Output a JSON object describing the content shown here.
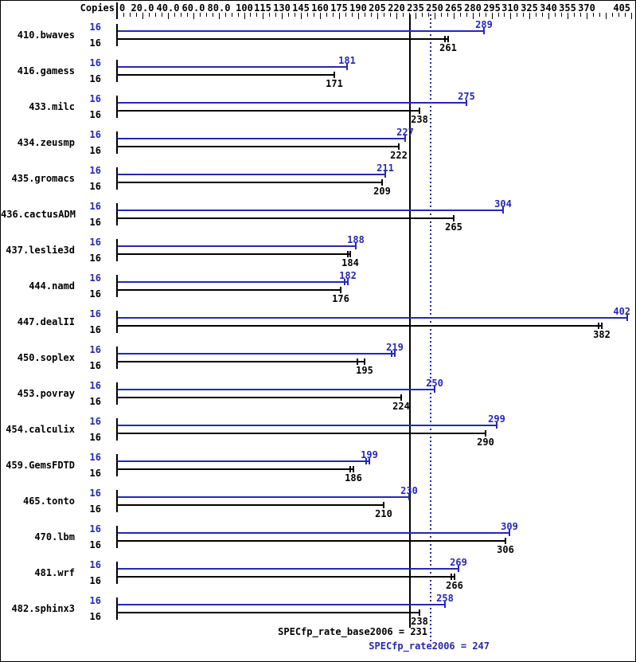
{
  "header": {
    "copies_label": "Copies"
  },
  "axis": {
    "min": 0,
    "max": 405,
    "minor_step": 5,
    "labels": [
      {
        "v": 0,
        "t": "0"
      },
      {
        "v": 20,
        "t": "20.0"
      },
      {
        "v": 40,
        "t": "40.0"
      },
      {
        "v": 60,
        "t": "60.0"
      },
      {
        "v": 80,
        "t": "80.0"
      },
      {
        "v": 100,
        "t": "100"
      },
      {
        "v": 115,
        "t": "115"
      },
      {
        "v": 130,
        "t": "130"
      },
      {
        "v": 145,
        "t": "145"
      },
      {
        "v": 160,
        "t": "160"
      },
      {
        "v": 175,
        "t": "175"
      },
      {
        "v": 190,
        "t": "190"
      },
      {
        "v": 205,
        "t": "205"
      },
      {
        "v": 220,
        "t": "220"
      },
      {
        "v": 235,
        "t": "235"
      },
      {
        "v": 250,
        "t": "250"
      },
      {
        "v": 265,
        "t": "265"
      },
      {
        "v": 280,
        "t": "280"
      },
      {
        "v": 295,
        "t": "295"
      },
      {
        "v": 310,
        "t": "310"
      },
      {
        "v": 325,
        "t": "325"
      },
      {
        "v": 340,
        "t": "340"
      },
      {
        "v": 355,
        "t": "355"
      },
      {
        "v": 370,
        "t": "370"
      },
      {
        "v": 405,
        "t": "405"
      }
    ],
    "unlabeled_major_ticks": [
      385
    ]
  },
  "benchmarks": [
    {
      "name": "410.bwaves",
      "copies": "16",
      "peak": 289,
      "base": 261,
      "peak_spread": 0,
      "base_spread": 4
    },
    {
      "name": "416.gamess",
      "copies": "16",
      "peak": 181,
      "base": 171,
      "peak_spread": 0,
      "base_spread": 0
    },
    {
      "name": "433.milc",
      "copies": "16",
      "peak": 275,
      "base": 238,
      "peak_spread": 0,
      "base_spread": 0
    },
    {
      "name": "434.zeusmp",
      "copies": "16",
      "peak": 227,
      "base": 222,
      "peak_spread": 0,
      "base_spread": 0
    },
    {
      "name": "435.gromacs",
      "copies": "16",
      "peak": 211,
      "base": 209,
      "peak_spread": 0,
      "base_spread": 0
    },
    {
      "name": "436.cactusADM",
      "copies": "16",
      "peak": 304,
      "base": 265,
      "peak_spread": 0,
      "base_spread": 0
    },
    {
      "name": "437.leslie3d",
      "copies": "16",
      "peak": 188,
      "base": 184,
      "peak_spread": 0,
      "base_spread": 3
    },
    {
      "name": "444.namd",
      "copies": "16",
      "peak": 182,
      "base": 176,
      "peak_spread": 4,
      "base_spread": 0
    },
    {
      "name": "447.dealII",
      "copies": "16",
      "peak": 402,
      "base": 382,
      "peak_spread": 0,
      "base_spread": 4
    },
    {
      "name": "450.soplex",
      "copies": "16",
      "peak": 219,
      "base": 195,
      "peak_spread": 4,
      "base_spread": 9
    },
    {
      "name": "453.povray",
      "copies": "16",
      "peak": 250,
      "base": 224,
      "peak_spread": 0,
      "base_spread": 0
    },
    {
      "name": "454.calculix",
      "copies": "16",
      "peak": 299,
      "base": 290,
      "peak_spread": 0,
      "base_spread": 0
    },
    {
      "name": "459.GemsFDTD",
      "copies": "16",
      "peak": 199,
      "base": 186,
      "peak_spread": 4,
      "base_spread": 4
    },
    {
      "name": "465.tonto",
      "copies": "16",
      "peak": 230,
      "base": 210,
      "peak_spread": 0,
      "base_spread": 0
    },
    {
      "name": "470.lbm",
      "copies": "16",
      "peak": 309,
      "base": 306,
      "peak_spread": 0,
      "base_spread": 0
    },
    {
      "name": "481.wrf",
      "copies": "16",
      "peak": 269,
      "base": 266,
      "peak_spread": 0,
      "base_spread": 4
    },
    {
      "name": "482.sphinx3",
      "copies": "16",
      "peak": 258,
      "base": 238,
      "peak_spread": 0,
      "base_spread": 0
    }
  ],
  "reference_lines": {
    "base": {
      "value": 231,
      "label": "SPECfp_rate_base2006 = 231"
    },
    "peak": {
      "value": 247,
      "label": "SPECfp_rate2006 = 247"
    }
  },
  "colors": {
    "peak": "#2727b3",
    "base": "#000000"
  },
  "chart_data": {
    "type": "bar",
    "orientation": "horizontal",
    "title": "",
    "xlabel": "",
    "ylabel": "Copies",
    "xlim": [
      0,
      405
    ],
    "grid": false,
    "categories": [
      "410.bwaves",
      "416.gamess",
      "433.milc",
      "434.zeusmp",
      "435.gromacs",
      "436.cactusADM",
      "437.leslie3d",
      "444.namd",
      "447.dealII",
      "450.soplex",
      "453.povray",
      "454.calculix",
      "459.GemsFDTD",
      "465.tonto",
      "470.lbm",
      "481.wrf",
      "482.sphinx3"
    ],
    "copies": [
      16,
      16,
      16,
      16,
      16,
      16,
      16,
      16,
      16,
      16,
      16,
      16,
      16,
      16,
      16,
      16,
      16
    ],
    "series": [
      {
        "name": "peak (SPECfp_rate2006)",
        "color": "#2727b3",
        "values": [
          289,
          181,
          275,
          227,
          211,
          304,
          188,
          182,
          402,
          219,
          250,
          299,
          199,
          230,
          309,
          269,
          258
        ]
      },
      {
        "name": "base (SPECfp_rate_base2006)",
        "color": "#000000",
        "values": [
          261,
          171,
          238,
          222,
          209,
          265,
          184,
          176,
          382,
          195,
          224,
          290,
          186,
          210,
          306,
          266,
          238
        ]
      }
    ],
    "annotations": [
      {
        "text": "SPECfp_rate_base2006 = 231",
        "value": 231,
        "style": "solid-black-vertical-line"
      },
      {
        "text": "SPECfp_rate2006 = 247",
        "value": 247,
        "style": "dotted-blue-vertical-line"
      }
    ],
    "axis_tick_labels": [
      "0",
      "20.0",
      "40.0",
      "60.0",
      "80.0",
      "100",
      "115",
      "130",
      "145",
      "160",
      "175",
      "190",
      "205",
      "220",
      "235",
      "250",
      "265",
      "280",
      "295",
      "310",
      "325",
      "340",
      "355",
      "370",
      "405"
    ]
  }
}
